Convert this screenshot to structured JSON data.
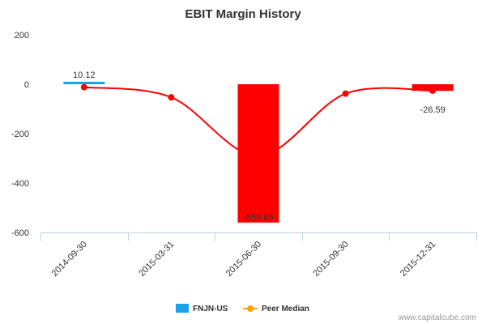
{
  "chart_data": {
    "type": "bar",
    "title": "EBIT Margin History",
    "xlabel": "",
    "ylabel": "",
    "ylim": [
      -600,
      200
    ],
    "yticks": [
      200,
      0,
      -200,
      -400,
      -600
    ],
    "categories": [
      "2014-09-30",
      "2015-03-31",
      "2015-06-30",
      "2015-09-30",
      "2015-12-31"
    ],
    "series": [
      {
        "name": "FNJN-US",
        "kind": "bar",
        "color": "#1aa3e8",
        "negative_color": "#ff0000",
        "values": [
          10.12,
          null,
          -559.86,
          null,
          -26.59
        ],
        "labels": [
          "10.12",
          "",
          "-559.86",
          "",
          "-26.59"
        ]
      },
      {
        "name": "Peer Median",
        "kind": "line",
        "color": "#ff0000",
        "legend_color": "#f7a21b",
        "values": [
          -12,
          -53,
          -290,
          -38,
          -26
        ]
      }
    ],
    "legend_position": "bottom",
    "grid": false
  },
  "credit": "www.capitalcube.com"
}
